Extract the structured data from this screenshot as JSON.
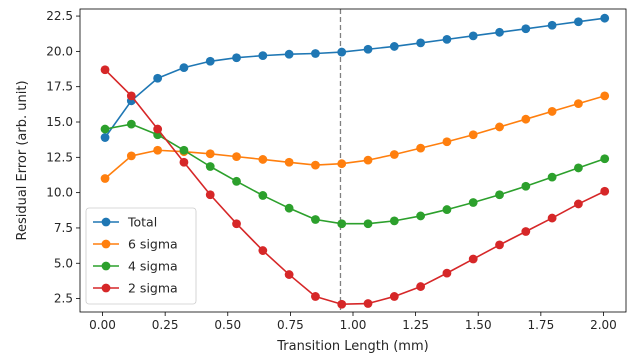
{
  "chart_data": {
    "type": "line",
    "title": "",
    "xlabel": "Transition Length (mm)",
    "ylabel": "Residual Error (arb. unit)",
    "xlim": [
      -0.09,
      2.09
    ],
    "ylim": [
      1.55,
      23.0
    ],
    "x_ticks": [
      0.0,
      0.25,
      0.5,
      0.75,
      1.0,
      1.25,
      1.5,
      1.75,
      2.0
    ],
    "x_tick_labels": [
      "0.00",
      "0.25",
      "0.50",
      "0.75",
      "1.00",
      "1.25",
      "1.50",
      "1.75",
      "2.00"
    ],
    "y_ticks": [
      2.5,
      5.0,
      7.5,
      10.0,
      12.5,
      15.0,
      17.5,
      20.0,
      22.5
    ],
    "y_tick_labels": [
      "2.5",
      "5.0",
      "7.5",
      "10.0",
      "12.5",
      "15.0",
      "17.5",
      "20.0",
      "22.5"
    ],
    "grid": false,
    "legend_position": "lower-left",
    "vline": {
      "x": 0.95,
      "style": "dashed",
      "color": "#808080"
    },
    "x": [
      0.01,
      0.115,
      0.22,
      0.325,
      0.43,
      0.535,
      0.64,
      0.745,
      0.85,
      0.955,
      1.06,
      1.165,
      1.27,
      1.375,
      1.48,
      1.585,
      1.69,
      1.795,
      1.9,
      2.005
    ],
    "series": [
      {
        "name": "Total",
        "color": "#1f77b4",
        "values": [
          13.9,
          16.5,
          18.1,
          18.85,
          19.3,
          19.55,
          19.7,
          19.8,
          19.85,
          19.95,
          20.15,
          20.35,
          20.6,
          20.85,
          21.1,
          21.35,
          21.6,
          21.85,
          22.1,
          22.35
        ]
      },
      {
        "name": "6 sigma",
        "color": "#ff7f0e",
        "values": [
          11.0,
          12.6,
          13.0,
          12.9,
          12.75,
          12.55,
          12.35,
          12.15,
          11.95,
          12.05,
          12.3,
          12.7,
          13.15,
          13.6,
          14.1,
          14.65,
          15.2,
          15.75,
          16.3,
          16.85
        ]
      },
      {
        "name": "4 sigma",
        "color": "#2ca02c",
        "values": [
          14.5,
          14.85,
          14.1,
          13.0,
          11.85,
          10.8,
          9.8,
          8.9,
          8.1,
          7.8,
          7.8,
          8.0,
          8.35,
          8.8,
          9.3,
          9.85,
          10.45,
          11.1,
          11.75,
          12.4
        ]
      },
      {
        "name": "2 sigma",
        "color": "#d62728",
        "values": [
          18.7,
          16.85,
          14.5,
          12.15,
          9.85,
          7.8,
          5.9,
          4.2,
          2.65,
          2.1,
          2.15,
          2.65,
          3.35,
          4.3,
          5.3,
          6.3,
          7.25,
          8.2,
          9.2,
          10.1
        ]
      }
    ]
  }
}
